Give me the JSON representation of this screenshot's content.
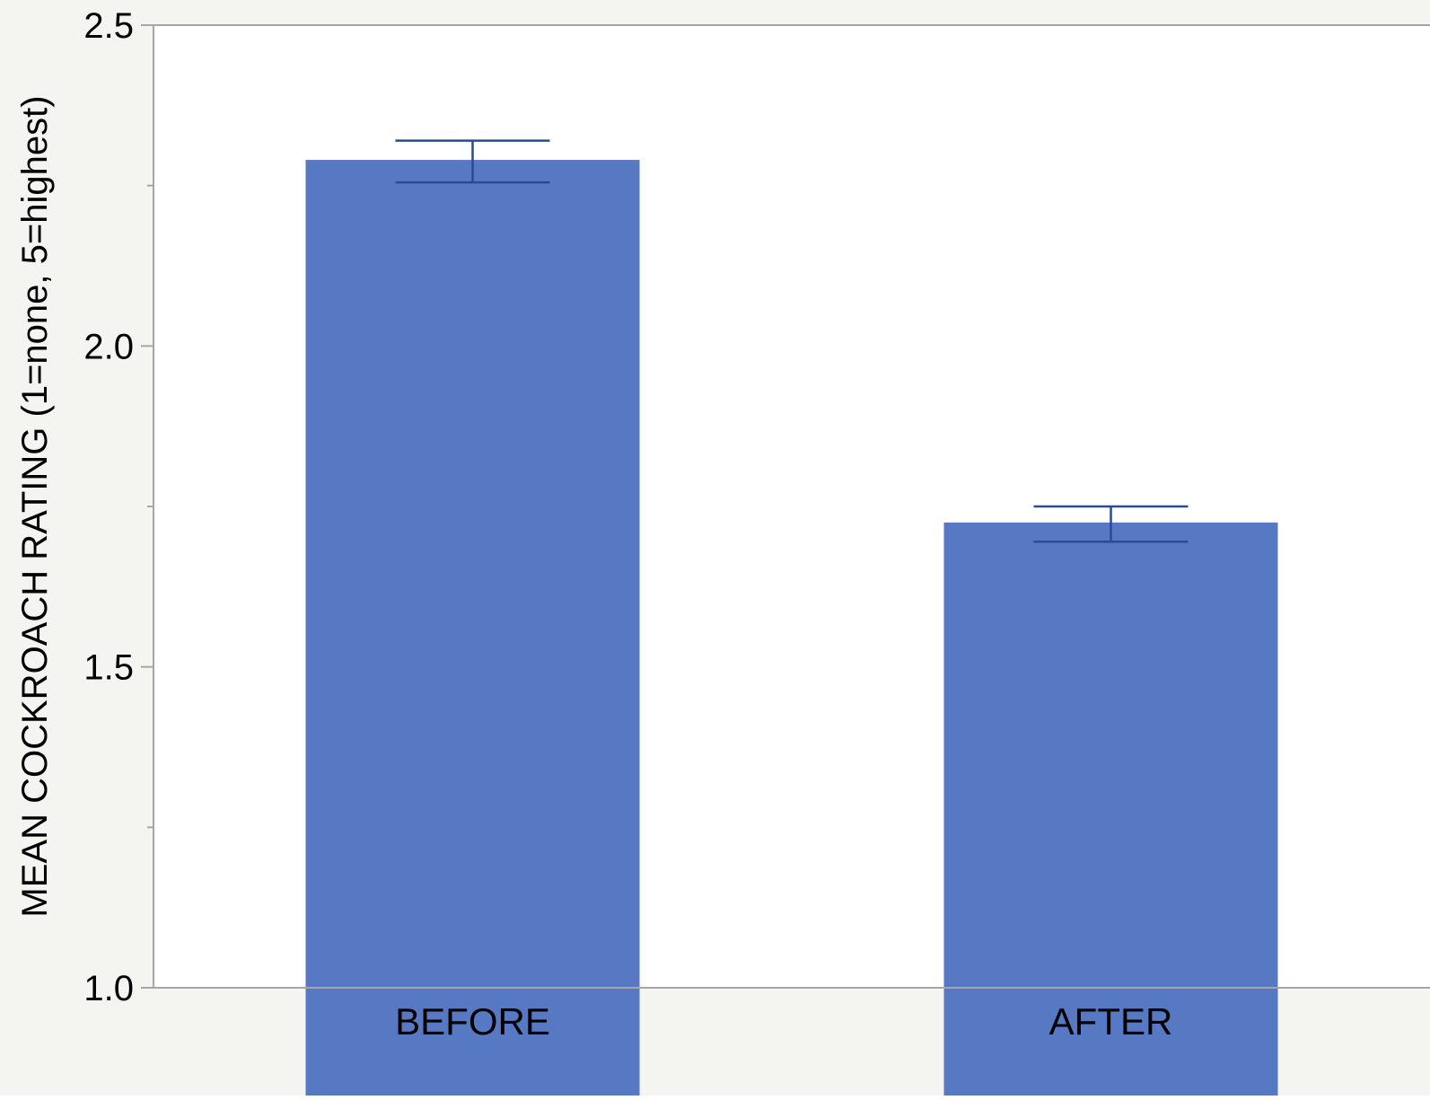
{
  "colors": {
    "page_background": "#f4f5f1",
    "plot_background": "#ffffff",
    "axis": "#a6a6a6",
    "bar": "#5778c3",
    "error_bar": "#2c4a90"
  },
  "chart_data": {
    "type": "bar",
    "ylabel": "MEAN COCKROACH RATING (1=none, 5=highest)",
    "xlabel": "",
    "categories": [
      "BEFORE",
      "AFTER"
    ],
    "values": [
      2.29,
      1.725
    ],
    "error_bars": [
      {
        "low": 2.255,
        "high": 2.32
      },
      {
        "low": 1.695,
        "high": 1.75
      }
    ],
    "ylim": [
      1.0,
      2.5
    ],
    "y_major_ticks": [
      1.0,
      1.5,
      2.0,
      2.5
    ],
    "y_tick_labels": [
      "1.0",
      "1.5",
      "2.0",
      "2.5"
    ],
    "y_minor_ticks": [
      1.25,
      1.75,
      2.25
    ],
    "grid": false,
    "legend": "none"
  }
}
